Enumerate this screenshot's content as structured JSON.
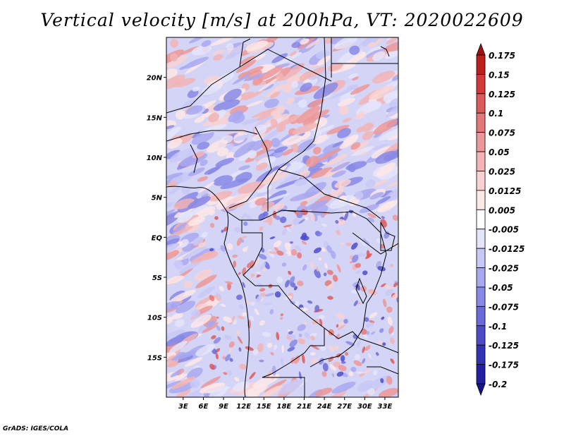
{
  "title": "Vertical velocity [m/s] at 200hPa, VT: 2020022609",
  "credit": "GrADS: IGES/COLA",
  "lat_ticks": [
    {
      "lat": 20,
      "label": "20N"
    },
    {
      "lat": 15,
      "label": "15N"
    },
    {
      "lat": 10,
      "label": "10N"
    },
    {
      "lat": 5,
      "label": "5N"
    },
    {
      "lat": 0,
      "label": "EQ"
    },
    {
      "lat": -5,
      "label": "5S"
    },
    {
      "lat": -10,
      "label": "10S"
    },
    {
      "lat": -15,
      "label": "15S"
    }
  ],
  "lon_ticks": [
    {
      "lon": 3,
      "label": "3E"
    },
    {
      "lon": 6,
      "label": "6E"
    },
    {
      "lon": 9,
      "label": "9E"
    },
    {
      "lon": 12,
      "label": "12E"
    },
    {
      "lon": 15,
      "label": "15E"
    },
    {
      "lon": 18,
      "label": "18E"
    },
    {
      "lon": 21,
      "label": "21E"
    },
    {
      "lon": 24,
      "label": "24E"
    },
    {
      "lon": 27,
      "label": "27E"
    },
    {
      "lon": 30,
      "label": "30E"
    },
    {
      "lon": 33,
      "label": "33E"
    }
  ],
  "map_extent": {
    "lon_min": 0.5,
    "lon_max": 35,
    "lat_min": -20,
    "lat_max": 25
  },
  "colorbar": {
    "labels": [
      "0.175",
      "0.15",
      "0.125",
      "0.1",
      "0.075",
      "0.05",
      "0.025",
      "0.0125",
      "0.005",
      "-0.005",
      "-0.0125",
      "-0.025",
      "-0.05",
      "-0.075",
      "-0.1",
      "-0.125",
      "-0.175",
      "-0.2"
    ],
    "colors": [
      "#a01010",
      "#be2020",
      "#d23a3a",
      "#dc5a5a",
      "#e47878",
      "#ec9898",
      "#f2b4b4",
      "#f8d2d2",
      "#fde8e8",
      "#ffffff",
      "#e4e4fc",
      "#c8c8f6",
      "#a8a8f0",
      "#8888e6",
      "#6a6ada",
      "#4c4cc8",
      "#3232b4",
      "#2020a0",
      "#141488"
    ]
  }
}
